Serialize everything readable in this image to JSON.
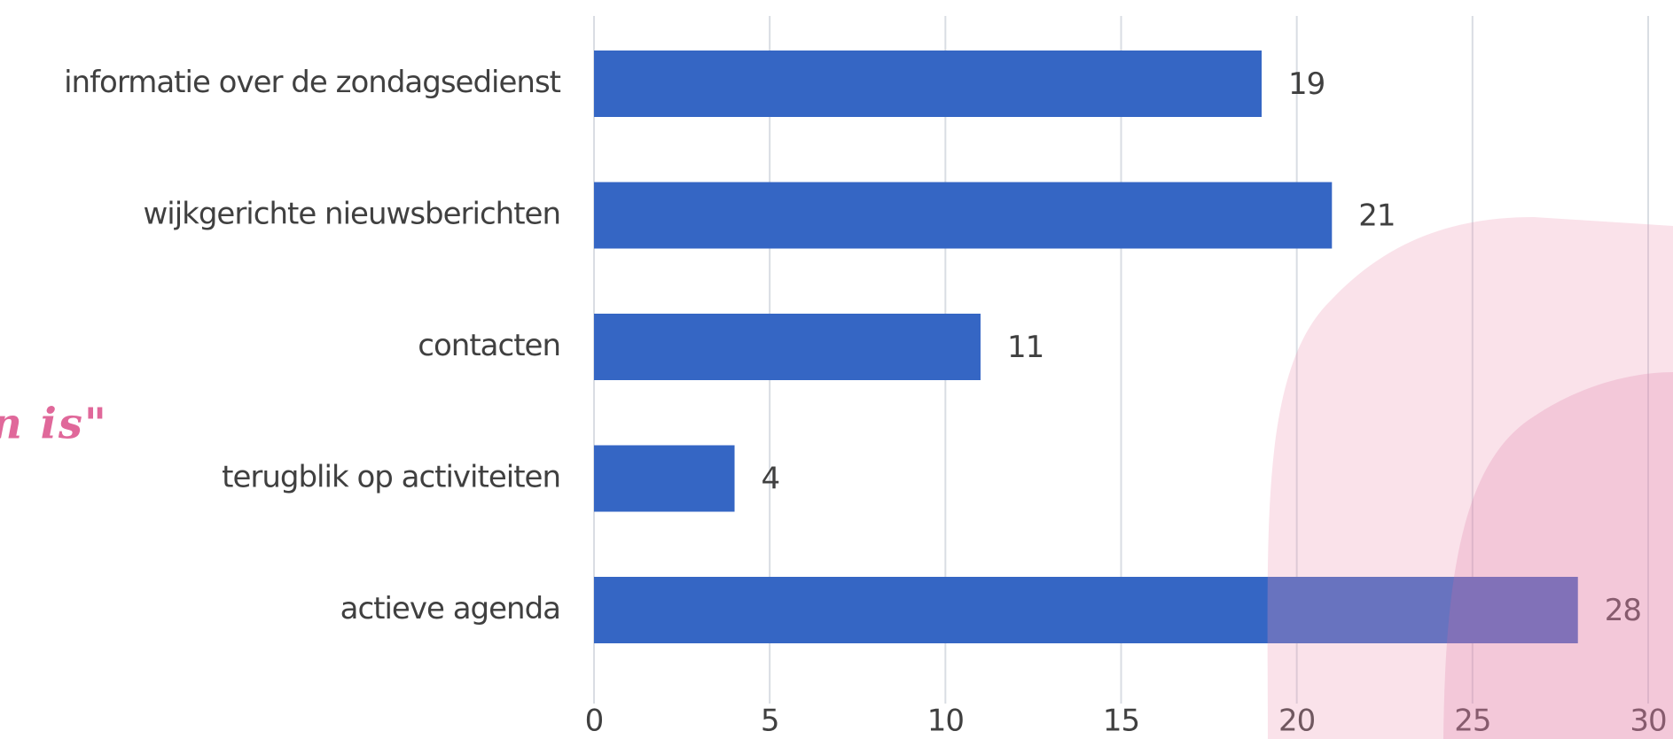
{
  "annotation": "n is\"",
  "chart_data": {
    "type": "bar",
    "orientation": "horizontal",
    "categories": [
      "informatie over de zondagsedienst",
      "wijkgerichte nieuwsberichten",
      "contacten",
      "terugblik op activiteiten",
      "actieve agenda"
    ],
    "values": [
      19,
      21,
      11,
      4,
      28
    ],
    "color": "#3566c4",
    "xlim": [
      0,
      30
    ],
    "xticks": [
      0,
      5,
      10,
      15,
      20,
      25,
      30
    ],
    "grid": true
  }
}
